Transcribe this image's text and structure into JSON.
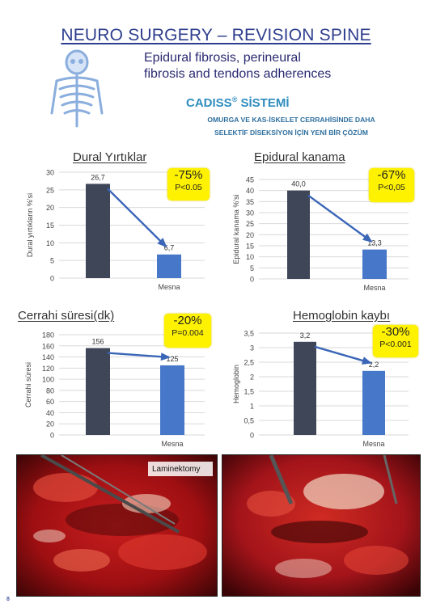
{
  "header": {
    "title": "NEURO SURGERY – REVISION SPINE",
    "subtitle_line1": "Epidural fibrosis, perineural",
    "subtitle_line2": "fibrosis and tendons adherences",
    "brand_name": "CADISS",
    "brand_reg": "®",
    "brand_suffix": " SİSTEMİ",
    "brand_line1": "OMURGA VE KAS-İSKELET CERRAHİSİNDE DAHA",
    "brand_line2": "SELEKTİF DİSEKSİYON İÇİN YENİ BİR ÇÖZÜM"
  },
  "colors": {
    "control_bar": "#3f4658",
    "mesna_bar": "#4677c8",
    "arrow": "#3b66b8",
    "badge": "#fff200",
    "title": "#2f3e8e"
  },
  "chart_data": [
    {
      "type": "bar",
      "title": "Dural Yırtıklar",
      "ylabel": "Dural yırtıklann %'si",
      "categories": [
        "",
        "Mesna"
      ],
      "values": [
        26.7,
        6.7
      ],
      "value_labels": [
        "26,7",
        "6,7"
      ],
      "yticks": [
        "0",
        "5",
        "10",
        "15",
        "20",
        "25",
        "30"
      ],
      "ylim": [
        0,
        30
      ],
      "badge": {
        "change": "-75%",
        "p": "P<0.05"
      }
    },
    {
      "type": "bar",
      "title": "Epidural kanama",
      "ylabel": "Epidural kanama %'si",
      "categories": [
        "",
        "Mesna"
      ],
      "values": [
        40.0,
        13.3
      ],
      "value_labels": [
        "40,0",
        "13,3"
      ],
      "yticks": [
        "0",
        "5",
        "10",
        "15",
        "20",
        "25",
        "30",
        "35",
        "40",
        "45"
      ],
      "ylim": [
        0,
        45
      ],
      "badge": {
        "change": "-67%",
        "p": "P<0,05"
      }
    },
    {
      "type": "bar",
      "title": "Cerrahi süresi(dk)",
      "ylabel": "Cerrahi süresi",
      "categories": [
        "",
        "Mesna"
      ],
      "values": [
        156,
        125
      ],
      "value_labels": [
        "156",
        "125"
      ],
      "yticks": [
        "0",
        "20",
        "40",
        "60",
        "80",
        "100",
        "120",
        "140",
        "160",
        "180"
      ],
      "ylim": [
        0,
        180
      ],
      "badge": {
        "change": "-20%",
        "p": "P=0.004"
      }
    },
    {
      "type": "bar",
      "title": "Hemoglobin kaybı",
      "ylabel": "Hemoglobin",
      "categories": [
        "",
        "Mesna"
      ],
      "values": [
        3.2,
        2.2
      ],
      "value_labels": [
        "3,2",
        "2,2"
      ],
      "yticks": [
        "0",
        "0,5",
        "1",
        "1,5",
        "2",
        "2,5",
        "3",
        "3,5"
      ],
      "ylim": [
        0,
        3.5
      ],
      "badge": {
        "change": "-30%",
        "p": "P<0.001"
      }
    }
  ],
  "photos": {
    "left_label": "Laminektomy"
  },
  "footer": {
    "page_number": "8"
  }
}
